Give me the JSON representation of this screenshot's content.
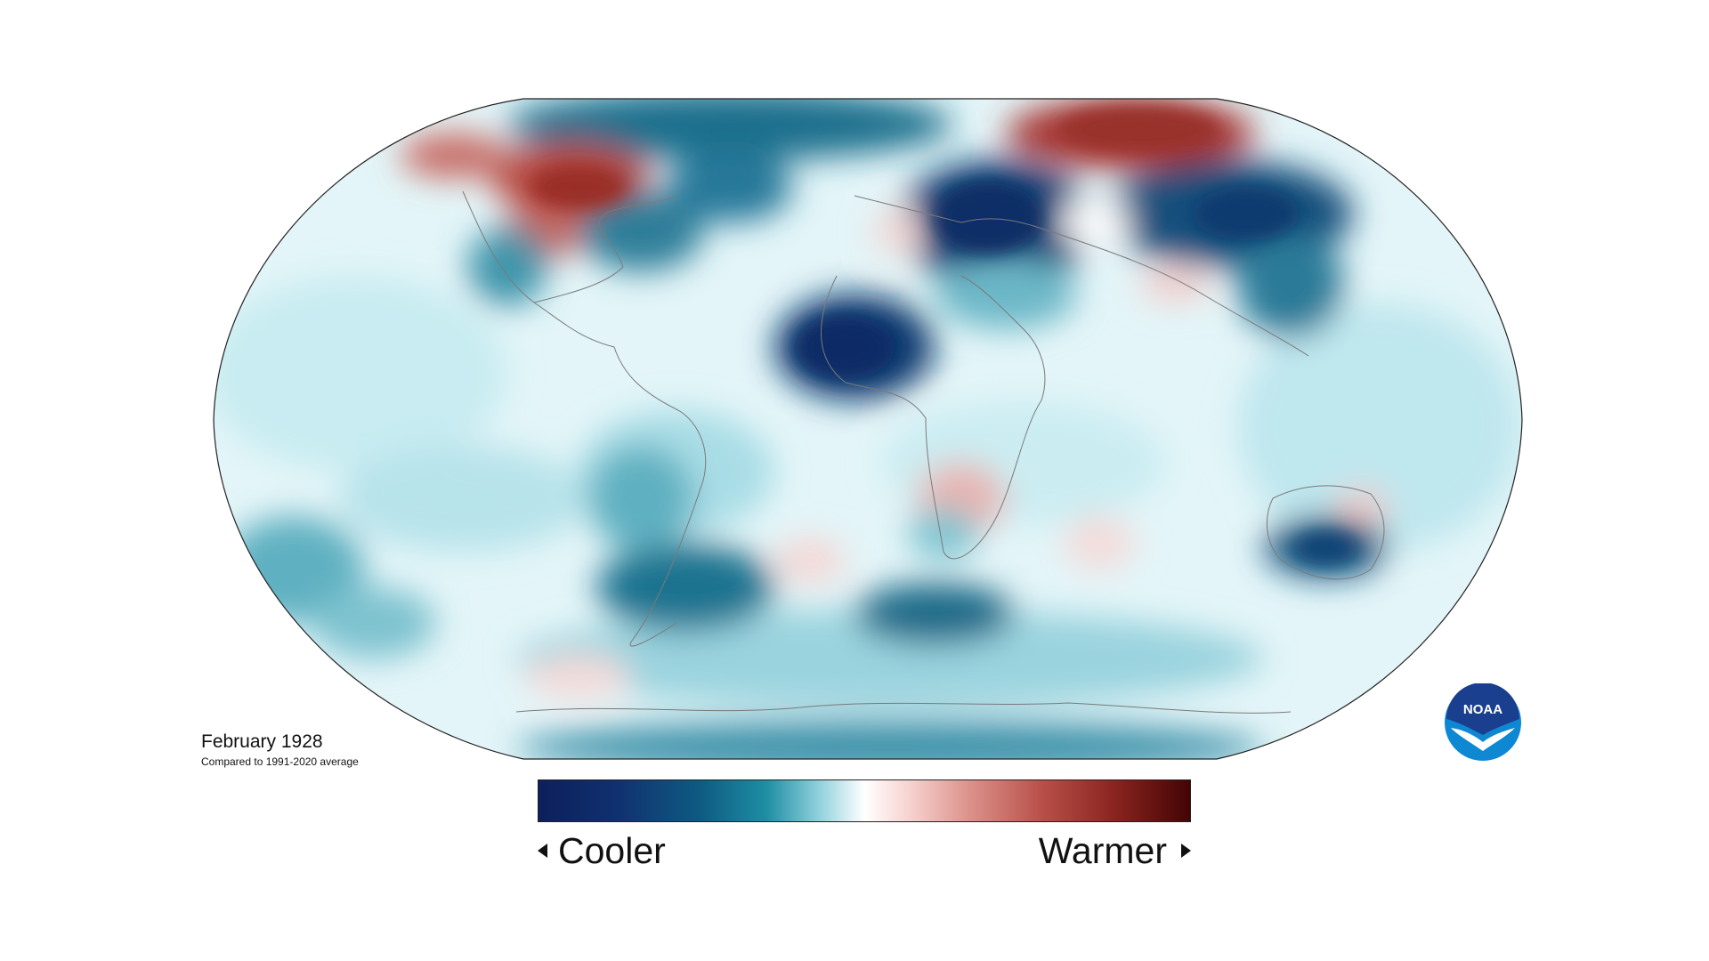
{
  "map": {
    "type": "global-temperature-anomaly",
    "projection": "robinson",
    "date_label": "February 1928",
    "comparison_label": "Compared to 1991-2020 average"
  },
  "legend": {
    "cooler_label": "Cooler",
    "warmer_label": "Warmer",
    "colors": [
      "#0d1f5c",
      "#0f4a7a",
      "#157a8f",
      "#6fc0cf",
      "#d9f1f4",
      "#ffffff",
      "#f6d4d2",
      "#d27e79",
      "#a53a33",
      "#4a0505"
    ]
  },
  "logo": {
    "text": "NOAA",
    "colors": [
      "#1a3f8f",
      "#0e88d3",
      "#ffffff"
    ]
  },
  "palette": {
    "background_ocean": "#e3f5f8",
    "cool_light": "#9fd6e0",
    "cool_mid": "#3f95ab",
    "cool_dark": "#0c5a7c",
    "cool_deepest": "#0c2a66",
    "warm_light": "#f3cfcd",
    "warm_mid": "#c9625c",
    "warm_dark": "#a3322d",
    "coastline": "#7a7a7a"
  }
}
